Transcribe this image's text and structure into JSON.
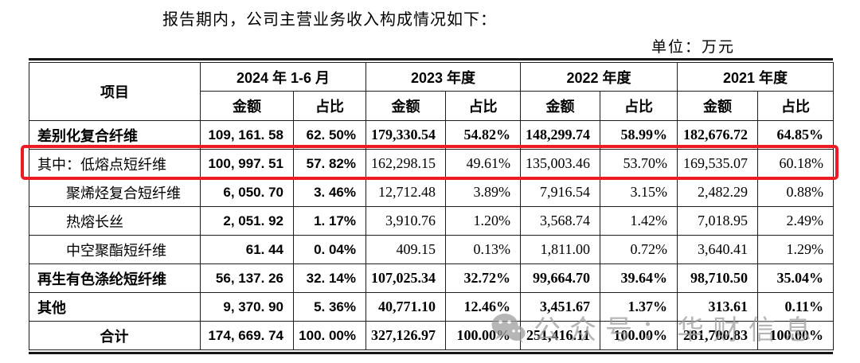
{
  "page": {
    "title": "报告期内，公司主营业务收入构成情况如下：",
    "unit_label": "单位：万元"
  },
  "watermark": {
    "icon": "wechat-icon",
    "text": "公众号：华财信息",
    "color": "#9b9b9b"
  },
  "highlight": {
    "color": "#ed1c24",
    "highlighted_row": "其中：低熔点短纤维"
  },
  "table": {
    "item_header": "项目",
    "amount_label": "金额",
    "ratio_label": "占比",
    "period_headers": [
      "2024 年 1-6 月",
      "2023 年度",
      "2022 年度",
      "2021 年度"
    ],
    "rows": [
      {
        "name": "差别化复合纤维",
        "indent": 0,
        "bold": true,
        "center": false,
        "values": [
          "109, 161. 58",
          "62. 50%",
          "179,330.54",
          "54.82%",
          "148,299.74",
          "58.99%",
          "182,676.72",
          "64.85%"
        ]
      },
      {
        "name": "其中：低熔点短纤维",
        "indent": 0,
        "bold": false,
        "center": false,
        "highlight": true,
        "values": [
          "100, 997. 51",
          "57. 82%",
          "162,298.15",
          "49.61%",
          "135,003.46",
          "53.70%",
          "169,535.07",
          "60.18%"
        ]
      },
      {
        "name": "聚烯烃复合短纤维",
        "indent": 1,
        "bold": false,
        "center": false,
        "values": [
          "6, 050. 70",
          "3. 46%",
          "12,712.48",
          "3.89%",
          "7,916.54",
          "3.15%",
          "2,482.29",
          "0.88%"
        ]
      },
      {
        "name": "热熔长丝",
        "indent": 1,
        "bold": false,
        "center": false,
        "values": [
          "2, 051. 92",
          "1. 17%",
          "3,910.76",
          "1.20%",
          "3,568.74",
          "1.42%",
          "7,018.95",
          "2.49%"
        ]
      },
      {
        "name": "中空聚酯短纤维",
        "indent": 1,
        "bold": false,
        "center": false,
        "values": [
          "61. 44",
          "0. 04%",
          "409.15",
          "0.13%",
          "1,811.00",
          "0.72%",
          "3,640.41",
          "1.29%"
        ]
      },
      {
        "name": "再生有色涤纶短纤维",
        "indent": 0,
        "bold": true,
        "center": false,
        "values": [
          "56, 137. 26",
          "32. 14%",
          "107,025.34",
          "32.72%",
          "99,664.70",
          "39.64%",
          "98,710.50",
          "35.04%"
        ]
      },
      {
        "name": "其他",
        "indent": 0,
        "bold": true,
        "center": false,
        "values": [
          "9, 370. 90",
          "5. 36%",
          "40,771.10",
          "12.46%",
          "3,451.67",
          "1.37%",
          "313.61",
          "0.11%"
        ]
      },
      {
        "name": "合计",
        "indent": 0,
        "bold": true,
        "center": true,
        "values": [
          "174, 669. 74",
          "100. 00%",
          "327,126.97",
          "100.00%",
          "251,416.11",
          "100.00%",
          "281,700.83",
          "100.00%"
        ]
      }
    ]
  }
}
